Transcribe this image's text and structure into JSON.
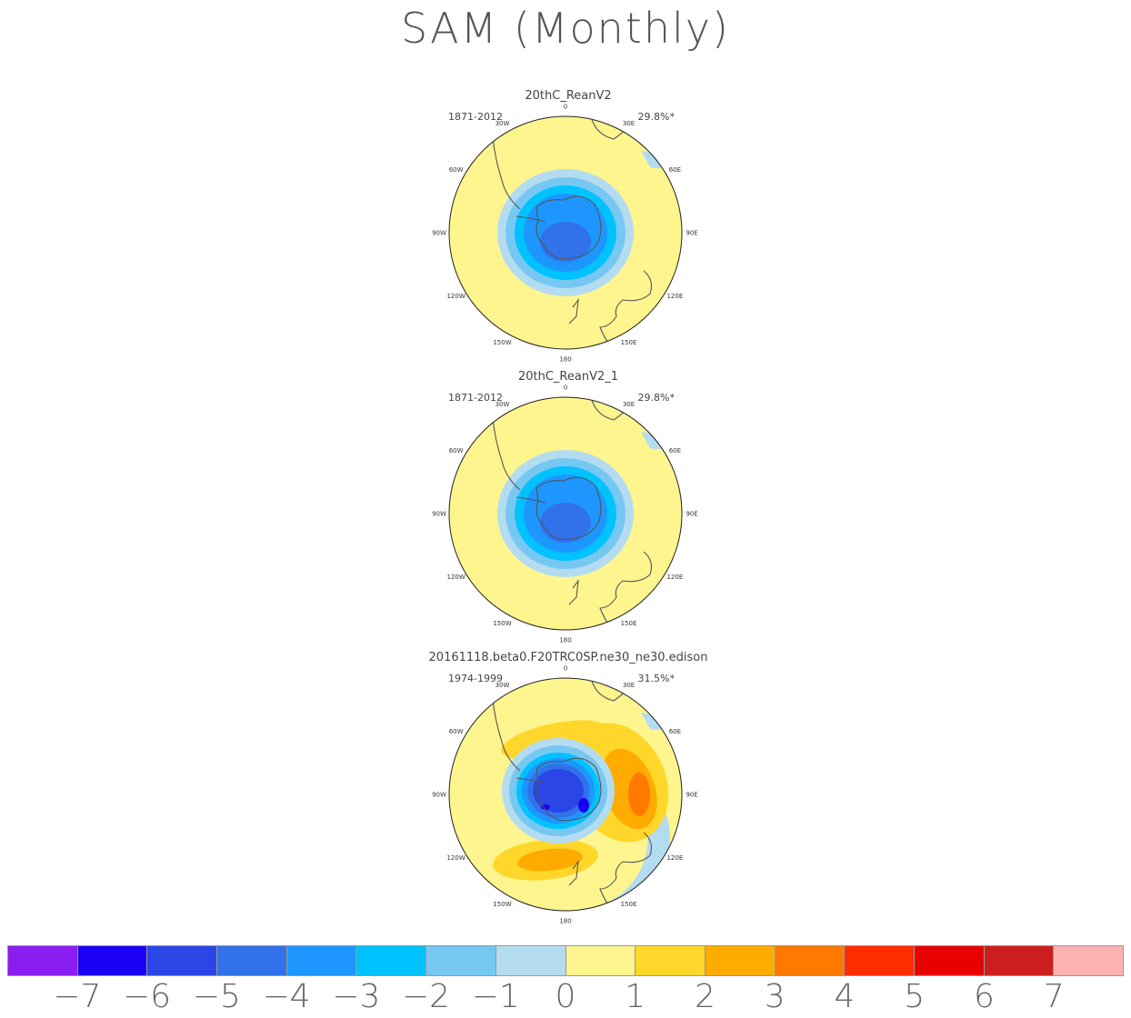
{
  "title": "SAM (Monthly)",
  "panels": [
    {
      "name": "20thC_ReanV2",
      "period": "1871-2012",
      "variance": "29.8%*",
      "pattern": "reanalysis"
    },
    {
      "name": "20thC_ReanV2_1",
      "period": "1871-2012",
      "variance": "29.8%*",
      "pattern": "reanalysis"
    },
    {
      "name": "20161118.beta0.F20TRC0SP.ne30_ne30.edison",
      "period": "1974-1999",
      "variance": "31.5%*",
      "pattern": "model"
    }
  ],
  "longitude_labels": [
    "0",
    "30E",
    "60E",
    "90E",
    "120E",
    "150E",
    "180",
    "150W",
    "120W",
    "90W",
    "60W",
    "30W"
  ],
  "colorbar": {
    "labels": [
      "-7",
      "-6",
      "-5",
      "-4",
      "-3",
      "-2",
      "-1",
      "0",
      "1",
      "2",
      "3",
      "4",
      "5",
      "6",
      "7"
    ],
    "colors": [
      "#8a1ef0",
      "#1a00f5",
      "#2a46e6",
      "#3172ea",
      "#1e96ff",
      "#00c2ff",
      "#76c8f2",
      "#b4dcf0",
      "#fff58f",
      "#ffd72a",
      "#ffab00",
      "#ff7800",
      "#ff2c00",
      "#e80000",
      "#cc1e1e",
      "#ffb2b2"
    ]
  },
  "chart_data": {
    "type": "heatmap",
    "colorbar_levels": [
      -7,
      -6,
      -5,
      -4,
      -3,
      -2,
      -1,
      0,
      1,
      2,
      3,
      4,
      5,
      6,
      7
    ],
    "projection": "south polar stereographic"
  }
}
